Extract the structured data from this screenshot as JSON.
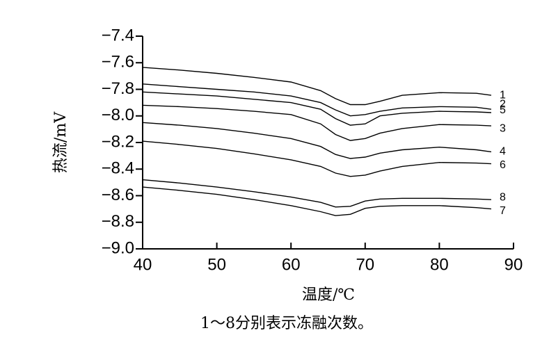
{
  "chart_data": {
    "type": "line",
    "ylabel": "热流/mV",
    "xlabel": "温度/℃",
    "caption": "1～8分别表示冻融次数。",
    "xlim": [
      40,
      90
    ],
    "xticks": [
      40,
      50,
      60,
      70,
      80,
      90
    ],
    "ylim": [
      -9.0,
      -7.4
    ],
    "yticks": [
      {
        "value": -9.0,
        "label": "−9.0"
      },
      {
        "value": -8.8,
        "label": "−8.8"
      },
      {
        "value": -8.6,
        "label": "−8.6"
      },
      {
        "value": -8.4,
        "label": "−8.4"
      },
      {
        "value": -8.2,
        "label": "−8.2"
      },
      {
        "value": -8.0,
        "label": "−8.0"
      },
      {
        "value": -7.8,
        "label": "−7.8"
      },
      {
        "value": -7.6,
        "label": "−7.6"
      },
      {
        "value": -7.4,
        "label": "−7.4"
      }
    ],
    "x": [
      40,
      45,
      50,
      55,
      60,
      64,
      66,
      68,
      70,
      72,
      75,
      80,
      85,
      87
    ],
    "series": [
      {
        "name": "1",
        "color": "#000000",
        "values": [
          -7.635,
          -7.655,
          -7.68,
          -7.71,
          -7.745,
          -7.81,
          -7.87,
          -7.915,
          -7.915,
          -7.89,
          -7.845,
          -7.825,
          -7.83,
          -7.845
        ]
      },
      {
        "name": "2",
        "color": "#000000",
        "values": [
          -7.76,
          -7.78,
          -7.8,
          -7.82,
          -7.85,
          -7.9,
          -7.955,
          -8.0,
          -7.99,
          -7.965,
          -7.94,
          -7.93,
          -7.935,
          -7.95
        ]
      },
      {
        "name": "5",
        "color": "#000000",
        "values": [
          -7.82,
          -7.835,
          -7.85,
          -7.875,
          -7.9,
          -7.95,
          -8.02,
          -8.07,
          -8.06,
          -8.0,
          -7.98,
          -7.965,
          -7.97,
          -7.975
        ]
      },
      {
        "name": "3",
        "color": "#000000",
        "values": [
          -7.92,
          -7.93,
          -7.945,
          -7.965,
          -7.99,
          -8.06,
          -8.14,
          -8.185,
          -8.17,
          -8.13,
          -8.095,
          -8.065,
          -8.07,
          -8.075
        ]
      },
      {
        "name": "4",
        "color": "#000000",
        "values": [
          -8.05,
          -8.07,
          -8.095,
          -8.13,
          -8.17,
          -8.23,
          -8.29,
          -8.32,
          -8.31,
          -8.28,
          -8.255,
          -8.235,
          -8.255,
          -8.27
        ]
      },
      {
        "name": "6",
        "color": "#000000",
        "values": [
          -8.19,
          -8.215,
          -8.245,
          -8.285,
          -8.33,
          -8.38,
          -8.43,
          -8.455,
          -8.445,
          -8.415,
          -8.38,
          -8.35,
          -8.355,
          -8.36
        ]
      },
      {
        "name": "8",
        "color": "#000000",
        "values": [
          -8.48,
          -8.505,
          -8.535,
          -8.57,
          -8.61,
          -8.65,
          -8.685,
          -8.68,
          -8.64,
          -8.625,
          -8.62,
          -8.62,
          -8.625,
          -8.63
        ]
      },
      {
        "name": "7",
        "color": "#000000",
        "values": [
          -8.535,
          -8.56,
          -8.59,
          -8.63,
          -8.675,
          -8.72,
          -8.75,
          -8.74,
          -8.695,
          -8.68,
          -8.675,
          -8.675,
          -8.69,
          -8.7
        ]
      }
    ]
  }
}
